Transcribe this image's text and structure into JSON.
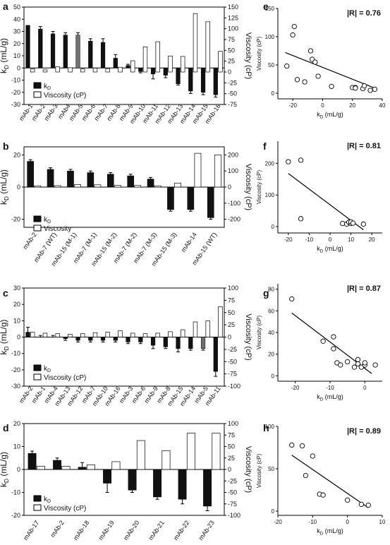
{
  "chart_data": [
    {
      "panel": "a",
      "type": "bar",
      "categories": [
        "mAb-1",
        "mAb-2",
        "mAb-3",
        "mAb4",
        "mAb-5",
        "mAb-6",
        "mAb-7",
        "mAb-8",
        "mAb-9",
        "mAb-10",
        "mAb-11",
        "mAb-12",
        "mAb-13",
        "mAb-14",
        "mAb-15",
        "mAb-16"
      ],
      "series": [
        {
          "name": "kD",
          "axis": "left",
          "values": [
            35,
            32,
            28,
            27,
            27,
            22,
            21,
            8,
            2,
            -3,
            -5,
            -6,
            -13,
            -19,
            -20,
            -22
          ],
          "errors": [
            0,
            2,
            2,
            2,
            2,
            2,
            3,
            3,
            1,
            1,
            4,
            2,
            1,
            2,
            2,
            2
          ],
          "colors": [
            "#111111",
            "#111111",
            "#111111",
            "#111111",
            "#707070",
            "#111111",
            "#111111",
            "#111111",
            "#111111",
            "#111111",
            "#111111",
            "#111111",
            "#111111",
            "#111111",
            "#111111",
            "#111111"
          ]
        },
        {
          "name": "Viscosity (cP)",
          "axis": "right",
          "values": [
            7,
            5,
            12,
            10,
            7,
            9,
            8,
            11,
            26,
            58,
            70,
            37,
            36,
            135,
            116,
            48
          ]
        }
      ],
      "ylabel": "k_D (mL/g)",
      "ylabel2": "Viscosity (cP)",
      "ylim": [
        -30,
        50
      ],
      "yticks": [
        -30,
        -20,
        -10,
        0,
        10,
        20,
        30,
        40,
        50
      ],
      "y2lim": [
        -75,
        150
      ],
      "y2ticks": [
        -75,
        -50,
        -25,
        0,
        25,
        50,
        75,
        100,
        125,
        150
      ],
      "legend": [
        {
          "label": "k",
          "sub": "D"
        },
        {
          "label": "Viscosity (cP)"
        }
      ]
    },
    {
      "panel": "e",
      "type": "scatter",
      "stat": "|R| = 0.76",
      "x": [
        -24,
        -20,
        -19,
        -17,
        -12,
        -8,
        -7,
        -5,
        -3,
        6,
        20,
        22,
        22,
        27,
        28,
        32,
        35
      ],
      "y": [
        48,
        103,
        118,
        24,
        20,
        75,
        60,
        55,
        30,
        12,
        10,
        10,
        9,
        8,
        13,
        5,
        7
      ],
      "xlabel": "k_D (mL/g)",
      "ylabel": "Viscosity (cP)",
      "xlim": [
        -30,
        40
      ],
      "xticks": [
        -20,
        0,
        20,
        40
      ],
      "ylim": [
        -10,
        150
      ],
      "yticks": [
        0,
        50,
        100,
        150
      ],
      "fit": [
        [
          -25,
          72
        ],
        [
          35,
          9
        ]
      ]
    },
    {
      "panel": "b",
      "type": "bar",
      "categories": [
        "mAb-2",
        "mAb-7 (WT)",
        "mAb-15 (M-1)",
        "mAb-7 (M-1)",
        "mAb-15 (M-2)",
        "mAb-7 (M-2)",
        "mAb-7 (M-3)",
        "mAb-15 (M-3)",
        "mAb-14",
        "mAb-15 (WT)"
      ],
      "series": [
        {
          "name": "kD",
          "axis": "left",
          "values": [
            16,
            11,
            10,
            9,
            8,
            7,
            5,
            -14,
            -14,
            -19
          ],
          "errors": [
            1,
            1,
            1,
            1,
            1,
            1,
            1,
            1,
            1,
            1
          ],
          "colors": [
            "#111111",
            "#111111",
            "#111111",
            "#111111",
            "#111111",
            "#111111",
            "#111111",
            "#111111",
            "#111111",
            "#111111"
          ]
        },
        {
          "name": "Viscosity",
          "axis": "right",
          "values": [
            8,
            9,
            15,
            14,
            11,
            10,
            8,
            25,
            210,
            200
          ]
        }
      ],
      "ylabel": "k_D (mL/g)",
      "ylabel2": "Viscosity (cP)",
      "ylim": [
        -25,
        25
      ],
      "yticks": [
        -20,
        0,
        20
      ],
      "y2lim": [
        -250,
        250
      ],
      "y2ticks": [
        -200,
        -100,
        0,
        100,
        200
      ],
      "legend": [
        {
          "label": "k",
          "sub": "D"
        },
        {
          "label": "Viscosity"
        }
      ]
    },
    {
      "panel": "f",
      "type": "scatter",
      "stat": "|R| = 0.81",
      "x": [
        -20,
        -14,
        -14,
        6,
        8,
        9,
        10,
        10,
        11,
        16
      ],
      "y": [
        205,
        210,
        25,
        10,
        8,
        14,
        10,
        15,
        11,
        8
      ],
      "xlabel": "k_D (mL/g)",
      "ylabel": "Viscosity (cP)",
      "xlim": [
        -25,
        25
      ],
      "xticks": [
        -20,
        -10,
        0,
        10,
        20
      ],
      "ylim": [
        -20,
        270
      ],
      "yticks": [
        0,
        100,
        200
      ],
      "fit": [
        [
          -20,
          168
        ],
        [
          16,
          -10
        ]
      ]
    },
    {
      "panel": "c",
      "type": "bar",
      "categories": [
        "mAb-2",
        "mAb-1",
        "mAb-4",
        "mAb-13",
        "mAb-12",
        "mAb-7",
        "mAb-10",
        "mAb-16",
        "mAb-3",
        "mAb-6",
        "mAb-9",
        "mAb-8",
        "mAb-15",
        "mAb-14",
        "mAb-5",
        "mAb-11"
      ],
      "series": [
        {
          "name": "kD",
          "axis": "left",
          "values": [
            3,
            0,
            0,
            -1,
            -2,
            -2,
            -2,
            -2,
            -3,
            -3,
            -5,
            -6,
            -7,
            -7,
            -7,
            -21
          ],
          "errors": [
            3,
            1,
            1,
            1,
            1,
            1,
            1,
            1,
            1,
            1,
            2,
            1,
            2,
            1,
            1,
            3
          ],
          "colors": [
            "#111111",
            "#111111",
            "#111111",
            "#111111",
            "#111111",
            "#111111",
            "#111111",
            "#111111",
            "#111111",
            "#111111",
            "#111111",
            "#111111",
            "#111111",
            "#111111",
            "#707070",
            "#111111"
          ]
        },
        {
          "name": "Viscosity (cP)",
          "axis": "right",
          "values": [
            10,
            8,
            7,
            6,
            7,
            9,
            10,
            13,
            8,
            7,
            8,
            11,
            15,
            31,
            33,
            62
          ]
        }
      ],
      "ylabel": "k_D (mL/g)",
      "ylabel2": "Viscosity (cP)",
      "ylim": [
        -30,
        30
      ],
      "yticks": [
        -30,
        -20,
        -10,
        0,
        10,
        20,
        30
      ],
      "y2lim": [
        -100,
        100
      ],
      "y2ticks": [
        -100,
        -75,
        -50,
        -25,
        0,
        25,
        50,
        75,
        100
      ],
      "legend": [
        {
          "label": "k",
          "sub": "D"
        },
        {
          "label": "Viscosity (cP)"
        }
      ]
    },
    {
      "panel": "g",
      "type": "scatter",
      "stat": "|R| = 0.87",
      "x": [
        -21,
        -12,
        -9,
        -9,
        -8,
        -7,
        -5,
        -3,
        -2,
        -2,
        -1,
        0,
        0,
        3
      ],
      "y": [
        71,
        32,
        36,
        25,
        12,
        10,
        13,
        8,
        15,
        11,
        8,
        10,
        12,
        10
      ],
      "xlabel": "k_D (mL/g)",
      "ylabel": "Viscosity (cP)",
      "xlim": [
        -25,
        5
      ],
      "xticks": [
        -20,
        -10,
        0
      ],
      "ylim": [
        -5,
        85
      ],
      "yticks": [
        0,
        20,
        40,
        60,
        80
      ],
      "fit": [
        [
          -21,
          58
        ],
        [
          2,
          2
        ]
      ]
    },
    {
      "panel": "d",
      "type": "bar",
      "categories": [
        "mAb-17",
        "mAb-2",
        "mAb-18",
        "mAb-19",
        "mAb-20",
        "mAb-21",
        "mAb-22",
        "mAb-23"
      ],
      "series": [
        {
          "name": "kD",
          "axis": "left",
          "values": [
            7,
            4,
            1,
            -6,
            -9,
            -12,
            -13,
            -16
          ],
          "errors": [
            1,
            1,
            2,
            4,
            1,
            1,
            2,
            2
          ],
          "colors": [
            "#111111",
            "#111111",
            "#111111",
            "#111111",
            "#111111",
            "#111111",
            "#111111",
            "#111111"
          ]
        },
        {
          "name": "Viscosity (cP)",
          "axis": "right",
          "values": [
            7,
            7,
            10,
            17,
            63,
            41,
            79,
            79
          ]
        }
      ],
      "ylabel": "k_D (mL/g)",
      "ylabel2": "Viscosity (cP)",
      "ylim": [
        -20,
        20
      ],
      "yticks": [
        -20,
        -10,
        0,
        10,
        20
      ],
      "y2lim": [
        -100,
        100
      ],
      "y2ticks": [
        -100,
        -75,
        -50,
        -25,
        0,
        25,
        50,
        75,
        100
      ],
      "legend": [
        {
          "label": "k",
          "sub": "D"
        },
        {
          "label": "Viscosity (cP)"
        }
      ]
    },
    {
      "panel": "h",
      "type": "scatter",
      "stat": "|R| = 0.89",
      "x": [
        -16,
        -13,
        -12,
        -10,
        -8,
        -7,
        0,
        4,
        6
      ],
      "y": [
        78,
        77,
        42,
        65,
        20,
        19,
        13,
        8,
        7
      ],
      "xlabel": "k_D (mL/g)",
      "ylabel": "Viscosity (cP)",
      "xlim": [
        -20,
        10
      ],
      "xticks": [
        -20,
        -10,
        0,
        10
      ],
      "ylim": [
        -5,
        100
      ],
      "yticks": [
        0,
        50,
        100
      ],
      "fit": [
        [
          -16,
          66
        ],
        [
          6,
          4
        ]
      ]
    }
  ]
}
